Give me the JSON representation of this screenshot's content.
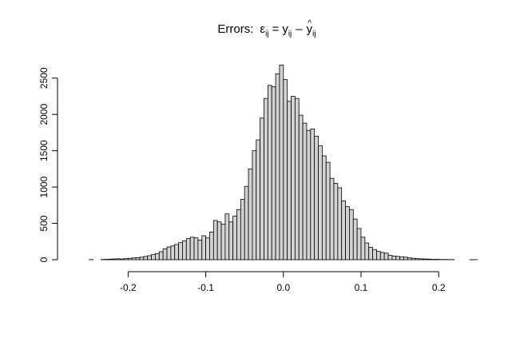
{
  "chart_data": {
    "type": "histogram",
    "title": {
      "prefix": "Errors:",
      "eps": "ε",
      "eps_sub": "ij",
      "eq": "=",
      "y": "y",
      "y_sub": "ij",
      "minus": "–",
      "yhat": "y",
      "hat": "^",
      "yhat_sub": "ij"
    },
    "xlabel": "",
    "ylabel": "",
    "bin_width": 0.005,
    "bin_start": -0.25,
    "xlim": [
      -0.275,
      0.275
    ],
    "ylim": [
      0,
      2700
    ],
    "grid": false,
    "x_ticks": [
      -0.2,
      -0.1,
      0.0,
      0.1,
      0.2
    ],
    "x_tick_labels": [
      "-0.2",
      "-0.1",
      "0.0",
      "0.1",
      "0.2"
    ],
    "y_ticks": [
      0,
      500,
      1000,
      1500,
      2000,
      2500
    ],
    "y_tick_labels": [
      "0",
      "500",
      "1000",
      "1500",
      "2000",
      "2500"
    ],
    "values": [
      2,
      0,
      0,
      3,
      5,
      8,
      10,
      12,
      10,
      15,
      20,
      25,
      28,
      35,
      45,
      55,
      70,
      85,
      110,
      150,
      175,
      190,
      210,
      235,
      260,
      290,
      310,
      300,
      270,
      330,
      300,
      380,
      540,
      520,
      490,
      630,
      520,
      600,
      690,
      830,
      1010,
      1250,
      1500,
      1650,
      1950,
      2220,
      2400,
      2380,
      2560,
      2680,
      2480,
      2180,
      2250,
      2220,
      1990,
      1880,
      1780,
      1800,
      1700,
      1570,
      1430,
      1340,
      1120,
      1050,
      990,
      810,
      730,
      690,
      560,
      430,
      310,
      230,
      170,
      140,
      115,
      100,
      90,
      60,
      50,
      45,
      40,
      35,
      25,
      20,
      15,
      12,
      10,
      8,
      5,
      5,
      3,
      3,
      2,
      2,
      0,
      0,
      0,
      0,
      1,
      1
    ]
  }
}
